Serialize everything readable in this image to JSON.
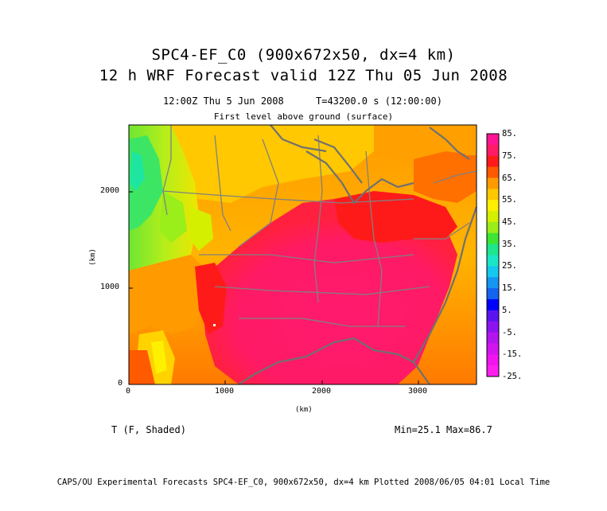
{
  "title": "SPC4-EF_C0 (900x672x50, dx=4 km)",
  "subtitle": "12 h WRF Forecast valid 12Z Thu 05 Jun 2008",
  "valid_time": "12:00Z Thu  5 Jun 2008",
  "forecast_seconds": "T=43200.0 s (12:00:00)",
  "level": "First level above ground (surface)",
  "variable": "T (F, Shaded)",
  "min_max": "Min=25.1 Max=86.7",
  "footer": "CAPS/OU Experimental Forecasts  SPC4-EF_C0, 900x672x50, dx=4 km  Plotted 2008/06/05 04:01 Local Time",
  "axes": {
    "x_label": "(km)",
    "y_label": "(km)",
    "x_ticks": [
      "0",
      "1000",
      "2000",
      "3000"
    ],
    "y_ticks": [
      "0",
      "1000",
      "2000"
    ]
  },
  "colorbar": {
    "labels": [
      "85.",
      "75.",
      "65.",
      "55.",
      "45.",
      "35.",
      "25.",
      "15.",
      "5.",
      "-5.",
      "-15.",
      "-25."
    ],
    "colors": [
      "#ff1493",
      "#ff1a66",
      "#ff1a1a",
      "#ff5a00",
      "#ff9a00",
      "#ffc800",
      "#fff000",
      "#d4f000",
      "#9aee1a",
      "#3ce632",
      "#1ee68c",
      "#1ae6c8",
      "#14c8f0",
      "#1496f0",
      "#1464f0",
      "#0000ff",
      "#5a14f0",
      "#8c14f0",
      "#b414f0",
      "#d214f0",
      "#f014f0",
      "#ff1ef0"
    ]
  }
}
